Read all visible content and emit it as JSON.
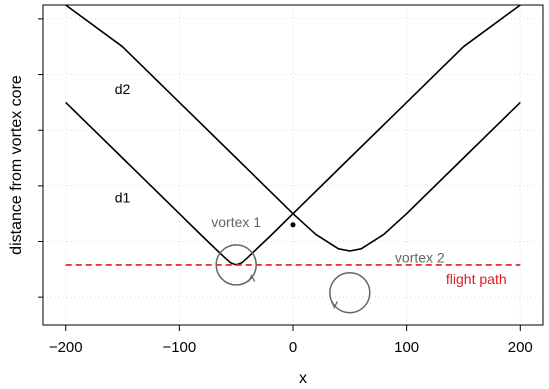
{
  "chart_data": {
    "type": "line",
    "title": "",
    "xlabel": "x",
    "ylabel": "distance from vortex core",
    "xlim": [
      -220,
      220
    ],
    "ylim": [
      -50,
      525
    ],
    "x_ticks": [
      -200,
      -100,
      0,
      100,
      200
    ],
    "x_tick_labels": [
      "−200",
      "−100",
      "0",
      "100",
      "200"
    ],
    "y_tick_labels_shown": false,
    "grid": true,
    "series": [
      {
        "name": "d1",
        "x": [
          -200,
          -150,
          -100,
          -80,
          -60,
          -55,
          -50,
          -45,
          -40,
          -20,
          0,
          50,
          100,
          150,
          200
        ],
        "y": [
          350,
          250,
          150,
          110,
          71,
          62,
          58,
          62,
          71,
          110,
          150,
          250,
          350,
          450,
          550
        ]
      },
      {
        "name": "d2",
        "x": [
          -200,
          -150,
          -100,
          -50,
          0,
          20,
          40,
          50,
          60,
          80,
          100,
          150,
          200
        ],
        "y": [
          550,
          450,
          350,
          250,
          150,
          113,
          87,
          83,
          87,
          113,
          150,
          250,
          350
        ]
      }
    ],
    "reference_lines": [
      {
        "label": "flight path",
        "y": 58,
        "color": "#e41a1c",
        "style": "dashed"
      }
    ],
    "points": [
      {
        "x": 0,
        "y": 130
      }
    ],
    "vortices": [
      {
        "label": "vortex 1",
        "x": -50,
        "y": 58,
        "rotation": "counterclockwise"
      },
      {
        "label": "vortex 2",
        "x": 50,
        "y": 8,
        "rotation": "clockwise"
      }
    ],
    "series_labels": [
      {
        "text": "d2",
        "x": -150,
        "y": 365
      },
      {
        "text": "d1",
        "x": -150,
        "y": 170
      }
    ],
    "colors": {
      "curve": "#000000",
      "vortex": "#666666",
      "flight_path": "#e41a1c",
      "grid": "#d9d9d9"
    }
  }
}
